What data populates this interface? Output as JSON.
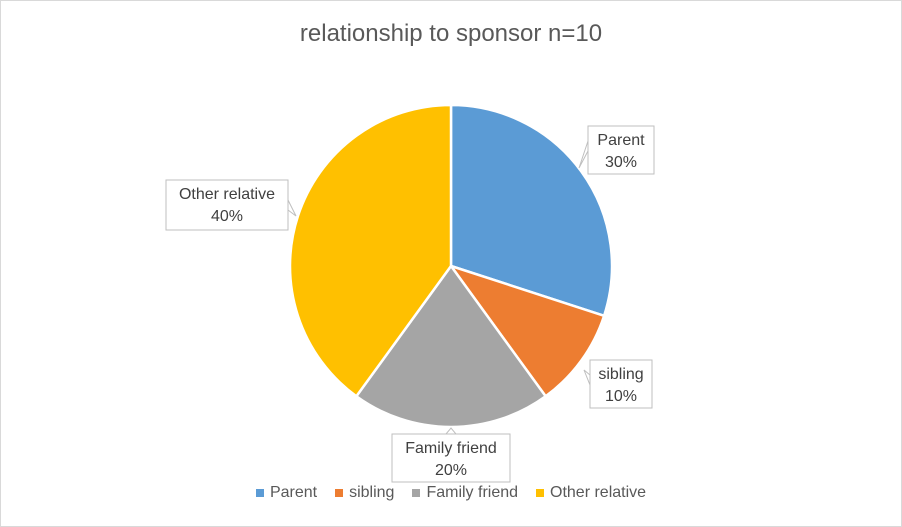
{
  "chart_data": {
    "type": "pie",
    "title": "relationship to sponsor n=10",
    "legend_position": "bottom",
    "categories": [
      "Parent",
      "sibling",
      "Family friend",
      "Other relative"
    ],
    "values": [
      30,
      10,
      20,
      40
    ],
    "data_labels": [
      {
        "name": "Parent",
        "pct": "30%"
      },
      {
        "name": "sibling",
        "pct": "10%"
      },
      {
        "name": "Family friend",
        "pct": "20%"
      },
      {
        "name": "Other relative",
        "pct": "40%"
      }
    ],
    "colors": [
      "#5B9BD5",
      "#ED7D31",
      "#A5A5A5",
      "#FFC000"
    ]
  }
}
